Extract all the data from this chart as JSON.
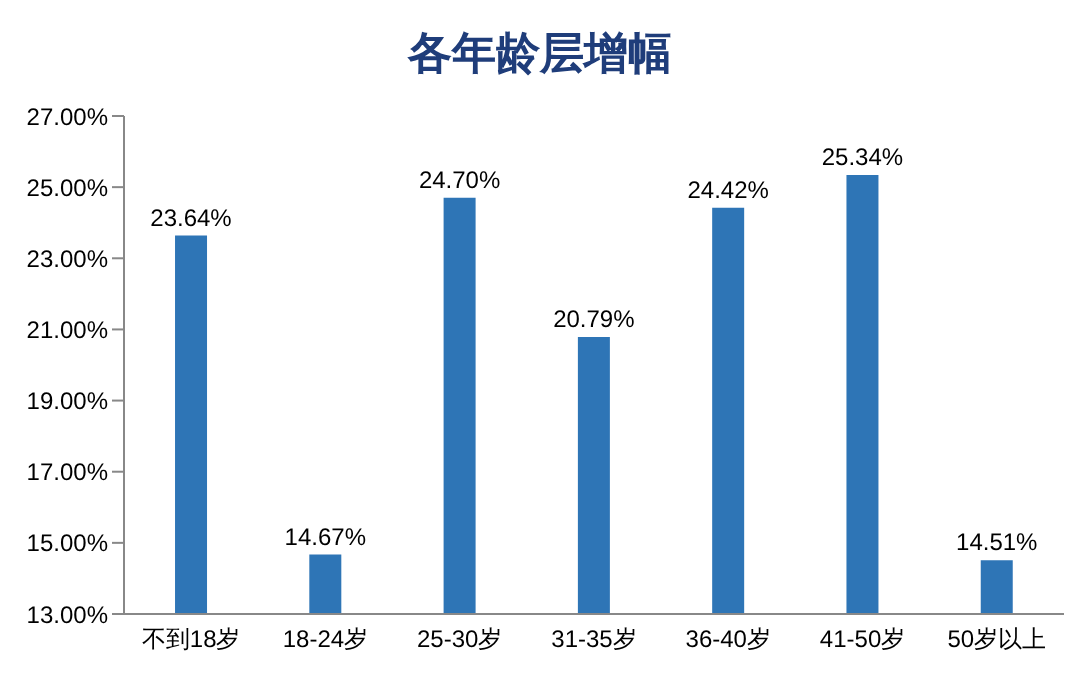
{
  "chart_data": {
    "type": "bar",
    "title": "各年龄层增幅",
    "categories": [
      "不到18岁",
      "18-24岁",
      "25-30岁",
      "31-35岁",
      "36-40岁",
      "41-50岁",
      "50岁以上"
    ],
    "values": [
      23.64,
      14.67,
      24.7,
      20.79,
      24.42,
      25.34,
      14.51
    ],
    "value_labels": [
      "23.64%",
      "14.67%",
      "24.70%",
      "20.79%",
      "24.42%",
      "25.34%",
      "14.51%"
    ],
    "color": "#2e75b6",
    "ylim": [
      13,
      27
    ],
    "yticks": [
      {
        "value": 13,
        "label": "13.00%"
      },
      {
        "value": 15,
        "label": "15.00%"
      },
      {
        "value": 17,
        "label": "17.00%"
      },
      {
        "value": 19,
        "label": "19.00%"
      },
      {
        "value": 21,
        "label": "21.00%"
      },
      {
        "value": 23,
        "label": "23.00%"
      },
      {
        "value": 25,
        "label": "25.00%"
      },
      {
        "value": 27,
        "label": "27.00%"
      }
    ],
    "grid": false
  }
}
